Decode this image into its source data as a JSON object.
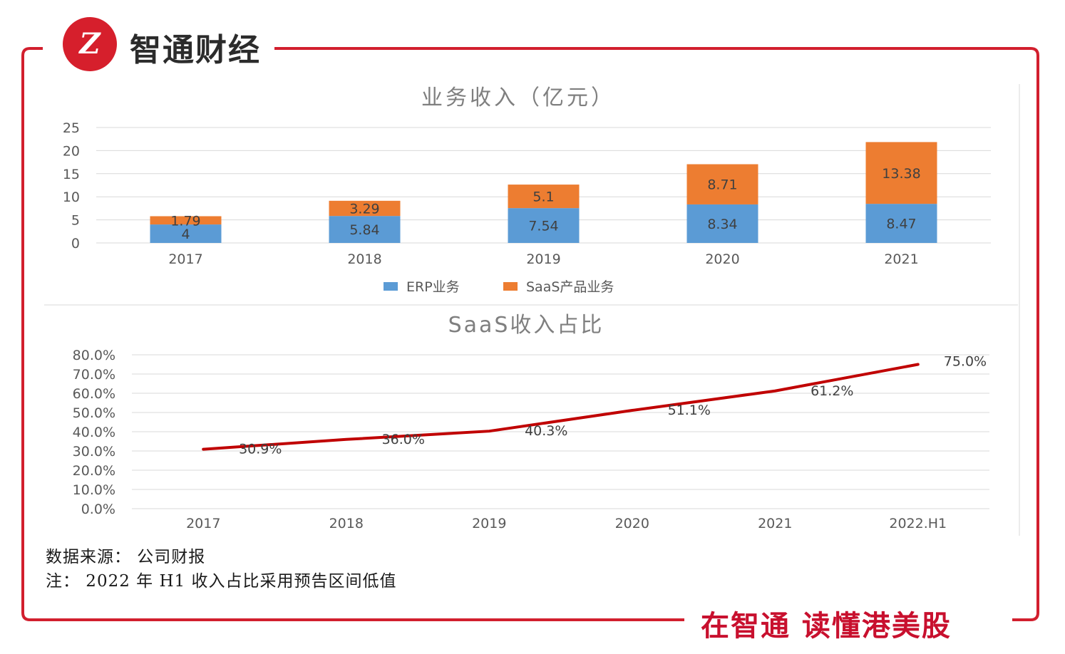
{
  "brand": {
    "name": "智通财经",
    "logo_text": "Z"
  },
  "slogan": "在智通 读懂港美股",
  "notes": {
    "source": "数据来源： 公司财报",
    "footnote": "注： 2022 年 H1 收入占比采用预告区间低值"
  },
  "colors": {
    "frame": "#d21f2e",
    "erp": "#5b9bd5",
    "saas": "#ed7d31",
    "line": "#c00000",
    "grid": "#d9d9d9",
    "axis_text": "#595959"
  },
  "chart_data": [
    {
      "type": "bar",
      "stacked": true,
      "title": "业务收入（亿元）",
      "categories": [
        "2017",
        "2018",
        "2019",
        "2020",
        "2021"
      ],
      "series": [
        {
          "name": "ERP业务",
          "values": [
            4,
            5.84,
            7.54,
            8.34,
            8.47
          ],
          "labels": [
            "4",
            "5.84",
            "7.54",
            "8.34",
            "8.47"
          ]
        },
        {
          "name": "SaaS产品业务",
          "values": [
            1.79,
            3.29,
            5.1,
            8.71,
            13.38
          ],
          "labels": [
            "1.79",
            "3.29",
            "5.1",
            "8.71",
            "13.38"
          ]
        }
      ],
      "ylim": [
        0,
        25
      ],
      "yticks": [
        "0",
        "5",
        "10",
        "15",
        "20",
        "25"
      ],
      "grid": true,
      "legend_position": "bottom"
    },
    {
      "type": "line",
      "title": "SaaS收入占比",
      "categories": [
        "2017",
        "2018",
        "2019",
        "2020",
        "2021",
        "2022.H1"
      ],
      "series": [
        {
          "name": "SaaS收入占比",
          "values": [
            30.9,
            36.0,
            40.3,
            51.1,
            61.2,
            75.0
          ],
          "labels": [
            "30.9%",
            "36.0%",
            "40.3%",
            "51.1%",
            "61.2%",
            "75.0%"
          ]
        }
      ],
      "ylim": [
        0,
        80
      ],
      "yticks": [
        "0.0%",
        "10.0%",
        "20.0%",
        "30.0%",
        "40.0%",
        "50.0%",
        "60.0%",
        "70.0%",
        "80.0%"
      ],
      "grid": true
    }
  ]
}
